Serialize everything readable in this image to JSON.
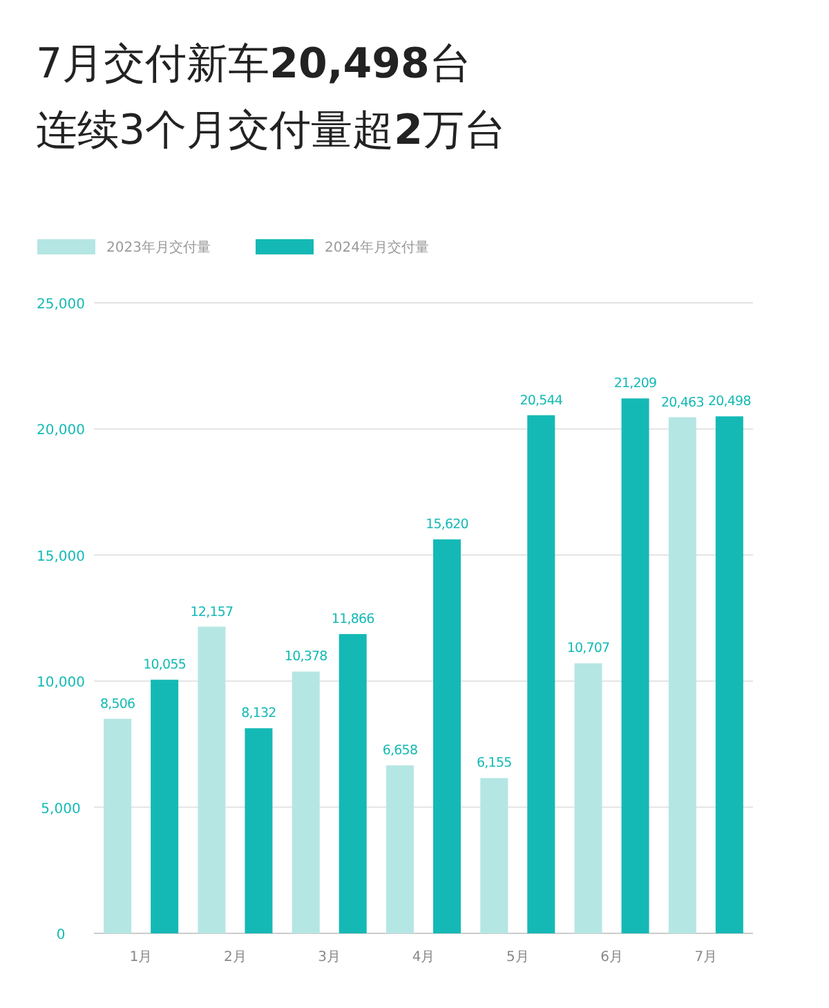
{
  "chart_data": {
    "type": "bar",
    "title": "7月交付新车**20,498**台",
    "subtitle": "连续3个月交付量超**2**万台",
    "categories": [
      "1月",
      "2月",
      "3月",
      "4月",
      "5月",
      "6月",
      "7月"
    ],
    "series": [
      {
        "name": "2023年月交付量",
        "color": "#b4e6e4",
        "values": [
          8506,
          12157,
          10378,
          6658,
          6155,
          10707,
          20463
        ],
        "value_labels": [
          "8,506",
          "12,157",
          "10,378",
          "6,658",
          "6,155",
          "10,707",
          "20,463"
        ]
      },
      {
        "name": "2024年月交付量",
        "color": "#14b9b5",
        "values": [
          10055,
          8132,
          11866,
          15620,
          20544,
          21209,
          20498
        ],
        "value_labels": [
          "10,055",
          "8,132",
          "11,866",
          "15,620",
          "20,544",
          "21,209",
          "20,498"
        ]
      }
    ],
    "ylim": [
      0,
      25000
    ],
    "yticks": [
      {
        "value": 0,
        "label": "0"
      },
      {
        "value": 5000,
        "label": "5,000"
      },
      {
        "value": 10000,
        "label": "10,000"
      },
      {
        "value": 15000,
        "label": "15,000"
      },
      {
        "value": 20000,
        "label": "20,000"
      },
      {
        "value": 25000,
        "label": "25,000"
      }
    ],
    "grid": "y",
    "legend": "top left"
  }
}
